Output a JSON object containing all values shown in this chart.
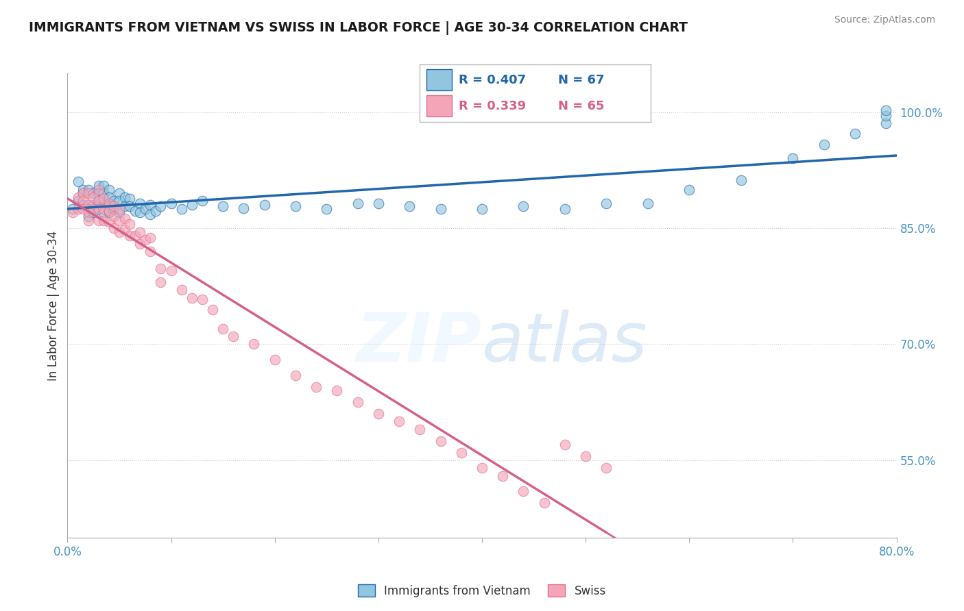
{
  "title": "IMMIGRANTS FROM VIETNAM VS SWISS IN LABOR FORCE | AGE 30-34 CORRELATION CHART",
  "source": "Source: ZipAtlas.com",
  "ylabel": "In Labor Force | Age 30-34",
  "xlim": [
    0.0,
    0.8
  ],
  "ylim": [
    0.45,
    1.05
  ],
  "xticks": [
    0.0,
    0.1,
    0.2,
    0.3,
    0.4,
    0.5,
    0.6,
    0.7,
    0.8
  ],
  "xticklabels": [
    "0.0%",
    "",
    "",
    "",
    "",
    "",
    "",
    "",
    "80.0%"
  ],
  "yticks_right": [
    0.55,
    0.7,
    0.85,
    1.0
  ],
  "yticklabels_right": [
    "55.0%",
    "70.0%",
    "85.0%",
    "100.0%"
  ],
  "legend_R_blue": "0.407",
  "legend_N_blue": "67",
  "legend_R_pink": "0.339",
  "legend_N_pink": "65",
  "legend_label_blue": "Immigrants from Vietnam",
  "legend_label_pink": "Swiss",
  "color_blue": "#92c5de",
  "color_pink": "#f4a6b8",
  "color_trendline_blue": "#2166ac",
  "color_trendline_pink": "#d6604d",
  "color_title": "#1a1a1a",
  "color_source": "#888888",
  "color_axis": "#4393c3",
  "background_color": "#ffffff",
  "grid_color": "#cccccc",
  "blue_scatter_x": [
    0.005,
    0.01,
    0.01,
    0.015,
    0.015,
    0.015,
    0.02,
    0.02,
    0.02,
    0.025,
    0.025,
    0.025,
    0.03,
    0.03,
    0.03,
    0.03,
    0.035,
    0.035,
    0.035,
    0.035,
    0.04,
    0.04,
    0.04,
    0.04,
    0.045,
    0.045,
    0.05,
    0.05,
    0.05,
    0.055,
    0.055,
    0.06,
    0.06,
    0.065,
    0.07,
    0.07,
    0.075,
    0.08,
    0.08,
    0.085,
    0.09,
    0.1,
    0.11,
    0.12,
    0.13,
    0.15,
    0.17,
    0.19,
    0.22,
    0.25,
    0.28,
    0.3,
    0.33,
    0.36,
    0.4,
    0.44,
    0.48,
    0.52,
    0.56,
    0.6,
    0.65,
    0.7,
    0.73,
    0.76,
    0.79,
    0.79,
    0.79
  ],
  "blue_scatter_y": [
    0.875,
    0.91,
    0.885,
    0.895,
    0.9,
    0.88,
    0.9,
    0.875,
    0.865,
    0.895,
    0.88,
    0.87,
    0.905,
    0.895,
    0.885,
    0.875,
    0.905,
    0.895,
    0.88,
    0.87,
    0.9,
    0.89,
    0.88,
    0.87,
    0.885,
    0.875,
    0.895,
    0.885,
    0.87,
    0.89,
    0.878,
    0.888,
    0.878,
    0.872,
    0.882,
    0.87,
    0.875,
    0.88,
    0.868,
    0.872,
    0.878,
    0.882,
    0.875,
    0.88,
    0.885,
    0.878,
    0.876,
    0.88,
    0.878,
    0.875,
    0.882,
    0.882,
    0.878,
    0.875,
    0.875,
    0.878,
    0.875,
    0.882,
    0.882,
    0.9,
    0.912,
    0.94,
    0.958,
    0.972,
    0.985,
    0.995,
    1.002
  ],
  "pink_scatter_x": [
    0.005,
    0.01,
    0.01,
    0.015,
    0.015,
    0.015,
    0.02,
    0.02,
    0.02,
    0.02,
    0.025,
    0.025,
    0.03,
    0.03,
    0.03,
    0.03,
    0.035,
    0.035,
    0.035,
    0.04,
    0.04,
    0.04,
    0.045,
    0.045,
    0.045,
    0.05,
    0.05,
    0.05,
    0.055,
    0.055,
    0.06,
    0.06,
    0.065,
    0.07,
    0.07,
    0.075,
    0.08,
    0.08,
    0.09,
    0.09,
    0.1,
    0.11,
    0.12,
    0.13,
    0.14,
    0.15,
    0.16,
    0.18,
    0.2,
    0.22,
    0.24,
    0.26,
    0.28,
    0.3,
    0.32,
    0.34,
    0.36,
    0.38,
    0.4,
    0.42,
    0.44,
    0.46,
    0.48,
    0.5,
    0.52
  ],
  "pink_scatter_y": [
    0.87,
    0.89,
    0.875,
    0.895,
    0.885,
    0.875,
    0.895,
    0.88,
    0.87,
    0.86,
    0.89,
    0.875,
    0.9,
    0.885,
    0.875,
    0.86,
    0.888,
    0.875,
    0.86,
    0.882,
    0.872,
    0.858,
    0.878,
    0.865,
    0.85,
    0.875,
    0.86,
    0.845,
    0.862,
    0.848,
    0.855,
    0.84,
    0.84,
    0.845,
    0.83,
    0.835,
    0.838,
    0.82,
    0.798,
    0.78,
    0.795,
    0.77,
    0.76,
    0.758,
    0.745,
    0.72,
    0.71,
    0.7,
    0.68,
    0.66,
    0.645,
    0.64,
    0.625,
    0.61,
    0.6,
    0.59,
    0.575,
    0.56,
    0.54,
    0.53,
    0.51,
    0.495,
    0.57,
    0.555,
    0.54
  ]
}
